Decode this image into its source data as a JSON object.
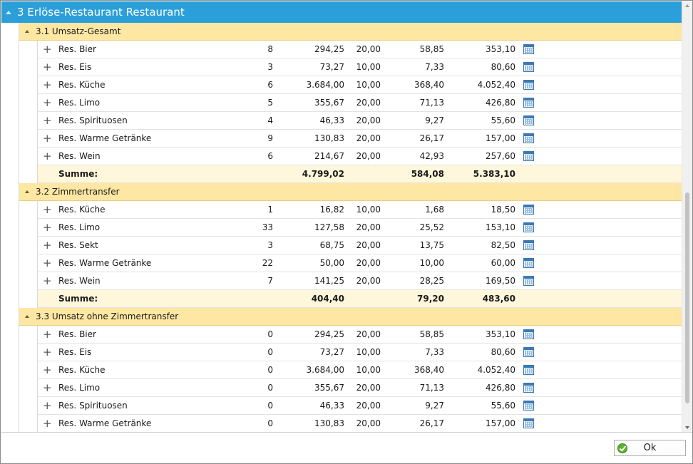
{
  "header": {
    "title": "3 Erlöse-Restaurant Restaurant"
  },
  "groups": [
    {
      "title": "3.1 Umsatz-Gesamt",
      "rows": [
        {
          "name": "Res. Bier",
          "qty": "8",
          "net": "294,25",
          "rate": "20,00",
          "tax": "58,85",
          "gross": "353,10"
        },
        {
          "name": "Res. Eis",
          "qty": "3",
          "net": "73,27",
          "rate": "10,00",
          "tax": "7,33",
          "gross": "80,60"
        },
        {
          "name": "Res. Küche",
          "qty": "6",
          "net": "3.684,00",
          "rate": "10,00",
          "tax": "368,40",
          "gross": "4.052,40"
        },
        {
          "name": "Res. Limo",
          "qty": "5",
          "net": "355,67",
          "rate": "20,00",
          "tax": "71,13",
          "gross": "426,80"
        },
        {
          "name": "Res. Spirituosen",
          "qty": "4",
          "net": "46,33",
          "rate": "20,00",
          "tax": "9,27",
          "gross": "55,60"
        },
        {
          "name": "Res. Warme Getränke",
          "qty": "9",
          "net": "130,83",
          "rate": "20,00",
          "tax": "26,17",
          "gross": "157,00"
        },
        {
          "name": "Res. Wein",
          "qty": "6",
          "net": "214,67",
          "rate": "20,00",
          "tax": "42,93",
          "gross": "257,60"
        }
      ],
      "summary": {
        "label": "Summe:",
        "net": "4.799,02",
        "tax": "584,08",
        "gross": "5.383,10"
      }
    },
    {
      "title": "3.2 Zimmertransfer",
      "rows": [
        {
          "name": "Res. Küche",
          "qty": "1",
          "net": "16,82",
          "rate": "10,00",
          "tax": "1,68",
          "gross": "18,50"
        },
        {
          "name": "Res. Limo",
          "qty": "33",
          "net": "127,58",
          "rate": "20,00",
          "tax": "25,52",
          "gross": "153,10"
        },
        {
          "name": "Res. Sekt",
          "qty": "3",
          "net": "68,75",
          "rate": "20,00",
          "tax": "13,75",
          "gross": "82,50"
        },
        {
          "name": "Res. Warme Getränke",
          "qty": "22",
          "net": "50,00",
          "rate": "20,00",
          "tax": "10,00",
          "gross": "60,00"
        },
        {
          "name": "Res. Wein",
          "qty": "7",
          "net": "141,25",
          "rate": "20,00",
          "tax": "28,25",
          "gross": "169,50"
        }
      ],
      "summary": {
        "label": "Summe:",
        "net": "404,40",
        "tax": "79,20",
        "gross": "483,60"
      }
    },
    {
      "title": "3.3 Umsatz ohne Zimmertransfer",
      "rows": [
        {
          "name": "Res. Bier",
          "qty": "0",
          "net": "294,25",
          "rate": "20,00",
          "tax": "58,85",
          "gross": "353,10"
        },
        {
          "name": "Res. Eis",
          "qty": "0",
          "net": "73,27",
          "rate": "10,00",
          "tax": "7,33",
          "gross": "80,60"
        },
        {
          "name": "Res. Küche",
          "qty": "0",
          "net": "3.684,00",
          "rate": "10,00",
          "tax": "368,40",
          "gross": "4.052,40"
        },
        {
          "name": "Res. Limo",
          "qty": "0",
          "net": "355,67",
          "rate": "20,00",
          "tax": "71,13",
          "gross": "426,80"
        },
        {
          "name": "Res. Spirituosen",
          "qty": "0",
          "net": "46,33",
          "rate": "20,00",
          "tax": "9,27",
          "gross": "55,60"
        },
        {
          "name": "Res. Warme Getränke",
          "qty": "0",
          "net": "130,83",
          "rate": "20,00",
          "tax": "26,17",
          "gross": "157,00"
        }
      ]
    }
  ],
  "icons": {
    "expand": "plus-icon",
    "row_detail": "calendar-grid-icon",
    "collapse": "triangle-up-icon",
    "ok": "check-circle-icon"
  },
  "footer": {
    "ok_label": "Ok"
  },
  "colors": {
    "header_bg": "#2b9fd9",
    "group_bg": "#fde7a3",
    "summary_bg": "#fff7db"
  }
}
